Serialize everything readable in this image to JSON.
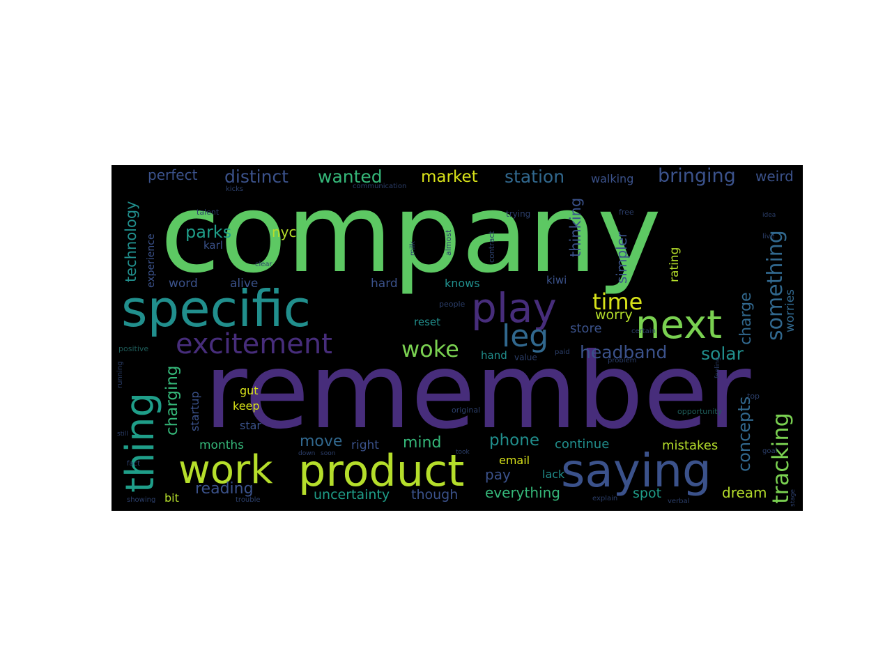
{
  "palette": {
    "green": "#5dc863",
    "purple": "#472d7b",
    "teal": "#218f8d",
    "lime": "#b5de2b",
    "lightgreen": "#7ad151",
    "blue": "#3b528b",
    "slate": "#31688e",
    "yellow": "#d8e219",
    "mint": "#35b779",
    "seagreen": "#1f9e89",
    "dim": "#2c3f6b",
    "dimteal": "#1e5d5a"
  },
  "words": [
    {
      "text": "company",
      "color": "green"
    },
    {
      "text": "remember",
      "color": "purple"
    },
    {
      "text": "specific",
      "color": "teal"
    },
    {
      "text": "product",
      "color": "lime"
    },
    {
      "text": "saying",
      "color": "blue"
    },
    {
      "text": "play",
      "color": "purple"
    },
    {
      "text": "work",
      "color": "lime"
    },
    {
      "text": "next",
      "color": "lightgreen"
    },
    {
      "text": "thing",
      "color": "seagreen"
    },
    {
      "text": "excitement",
      "color": "purple"
    },
    {
      "text": "leg",
      "color": "slate"
    },
    {
      "text": "woke",
      "color": "lightgreen"
    },
    {
      "text": "time",
      "color": "yellow"
    },
    {
      "text": "tracking",
      "color": "lightgreen"
    },
    {
      "text": "something",
      "color": "slate"
    },
    {
      "text": "distinct",
      "color": "blue"
    },
    {
      "text": "wanted",
      "color": "mint"
    },
    {
      "text": "market",
      "color": "yellow"
    },
    {
      "text": "station",
      "color": "slate"
    },
    {
      "text": "bringing",
      "color": "blue"
    },
    {
      "text": "parks",
      "color": "seagreen"
    },
    {
      "text": "headband",
      "color": "blue"
    },
    {
      "text": "solar",
      "color": "teal"
    },
    {
      "text": "concepts",
      "color": "slate"
    },
    {
      "text": "charge",
      "color": "slate"
    },
    {
      "text": "charging",
      "color": "mint"
    },
    {
      "text": "phone",
      "color": "teal"
    },
    {
      "text": "move",
      "color": "slate"
    },
    {
      "text": "mind",
      "color": "mint"
    },
    {
      "text": "reading",
      "color": "blue"
    },
    {
      "text": "uncertainty",
      "color": "seagreen"
    },
    {
      "text": "everything",
      "color": "mint"
    },
    {
      "text": "perfect",
      "color": "blue"
    },
    {
      "text": "technology",
      "color": "teal"
    },
    {
      "text": "nyc",
      "color": "lime"
    },
    {
      "text": "thinking",
      "color": "blue"
    },
    {
      "text": "simpler",
      "color": "blue"
    },
    {
      "text": "worry",
      "color": "lime"
    },
    {
      "text": "store",
      "color": "blue"
    },
    {
      "text": "rating",
      "color": "lime"
    },
    {
      "text": "weird",
      "color": "blue"
    },
    {
      "text": "walking",
      "color": "blue"
    },
    {
      "text": "worries",
      "color": "slate"
    },
    {
      "text": "dream",
      "color": "lime"
    },
    {
      "text": "mistakes",
      "color": "lime"
    },
    {
      "text": "continue",
      "color": "teal"
    },
    {
      "text": "months",
      "color": "mint"
    },
    {
      "text": "right",
      "color": "blue"
    },
    {
      "text": "email",
      "color": "yellow"
    },
    {
      "text": "pay",
      "color": "blue"
    },
    {
      "text": "lack",
      "color": "teal"
    },
    {
      "text": "though",
      "color": "blue"
    },
    {
      "text": "spot",
      "color": "seagreen"
    },
    {
      "text": "bit",
      "color": "lime"
    },
    {
      "text": "star",
      "color": "blue"
    },
    {
      "text": "keep",
      "color": "yellow"
    },
    {
      "text": "gut",
      "color": "yellow"
    },
    {
      "text": "startup",
      "color": "blue"
    },
    {
      "text": "experience",
      "color": "blue"
    },
    {
      "text": "word",
      "color": "blue"
    },
    {
      "text": "alive",
      "color": "blue"
    },
    {
      "text": "karl",
      "color": "blue"
    },
    {
      "text": "hard",
      "color": "blue"
    },
    {
      "text": "knows",
      "color": "teal"
    },
    {
      "text": "kiwi",
      "color": "blue"
    },
    {
      "text": "reset",
      "color": "teal"
    },
    {
      "text": "hand",
      "color": "teal"
    },
    {
      "text": "value",
      "color": "dim"
    },
    {
      "text": "people",
      "color": "dim"
    },
    {
      "text": "almost",
      "color": "dim"
    },
    {
      "text": "contract",
      "color": "dim"
    },
    {
      "text": "trying",
      "color": "dim"
    },
    {
      "text": "free",
      "color": "dim"
    },
    {
      "text": "talent",
      "color": "dim"
    },
    {
      "text": "kicks",
      "color": "dim"
    },
    {
      "text": "communication",
      "color": "dim"
    },
    {
      "text": "milk",
      "color": "dim"
    },
    {
      "text": "clear",
      "color": "dim"
    },
    {
      "text": "positive",
      "color": "dimteal"
    },
    {
      "text": "running",
      "color": "dim"
    },
    {
      "text": "showing",
      "color": "dim"
    },
    {
      "text": "trouble",
      "color": "dim"
    },
    {
      "text": "original",
      "color": "dim"
    },
    {
      "text": "opportunity",
      "color": "dimteal"
    },
    {
      "text": "took",
      "color": "dim"
    },
    {
      "text": "paid",
      "color": "dim"
    },
    {
      "text": "certain",
      "color": "dim"
    },
    {
      "text": "explain",
      "color": "dim"
    },
    {
      "text": "verbal",
      "color": "dim"
    },
    {
      "text": "goal",
      "color": "dim"
    },
    {
      "text": "top",
      "color": "dim"
    },
    {
      "text": "stage",
      "color": "dim"
    },
    {
      "text": "live",
      "color": "dim"
    },
    {
      "text": "down",
      "color": "dim"
    },
    {
      "text": "soon",
      "color": "dim"
    },
    {
      "text": "still",
      "color": "dim"
    },
    {
      "text": "fact",
      "color": "dim"
    },
    {
      "text": "idea",
      "color": "dim"
    },
    {
      "text": "feeling",
      "color": "dim"
    },
    {
      "text": "problem",
      "color": "dim"
    }
  ]
}
